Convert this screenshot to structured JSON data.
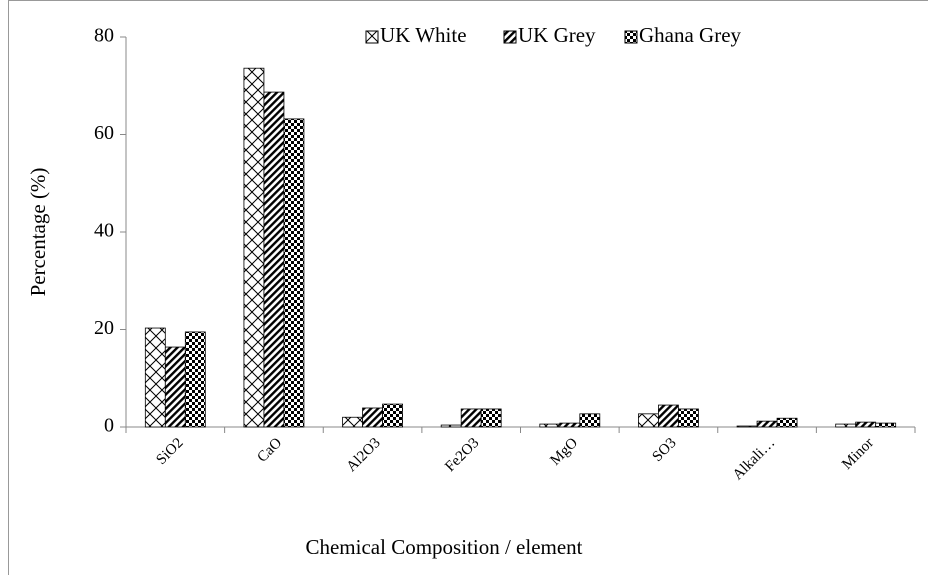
{
  "chart_data": {
    "type": "bar",
    "x_label": "Chemical Composition / element",
    "y_label": "Percentage (%)",
    "categories": [
      "SiO2",
      "CaO",
      "Al2O3",
      "Fe2O3",
      "MgO",
      "SO3",
      "Alkali…",
      "Minor"
    ],
    "series": [
      {
        "name": "UK White",
        "color": "#000000",
        "pattern": "crosshatch",
        "values": [
          20.3,
          73.6,
          2.0,
          0.4,
          0.6,
          2.7,
          0.2,
          0.6
        ]
      },
      {
        "name": "UK Grey",
        "color": "#000000",
        "pattern": "stripes",
        "values": [
          16.4,
          68.7,
          3.9,
          3.7,
          0.8,
          4.5,
          1.2,
          1.0
        ]
      },
      {
        "name": "Ghana Grey",
        "color": "#000000",
        "pattern": "dots",
        "values": [
          19.5,
          63.2,
          4.7,
          3.7,
          2.7,
          3.7,
          1.8,
          0.8
        ]
      }
    ],
    "ylim": [
      0,
      80
    ],
    "yticks": [
      0,
      20,
      40,
      60,
      80
    ],
    "grid": false,
    "legend": "top"
  }
}
